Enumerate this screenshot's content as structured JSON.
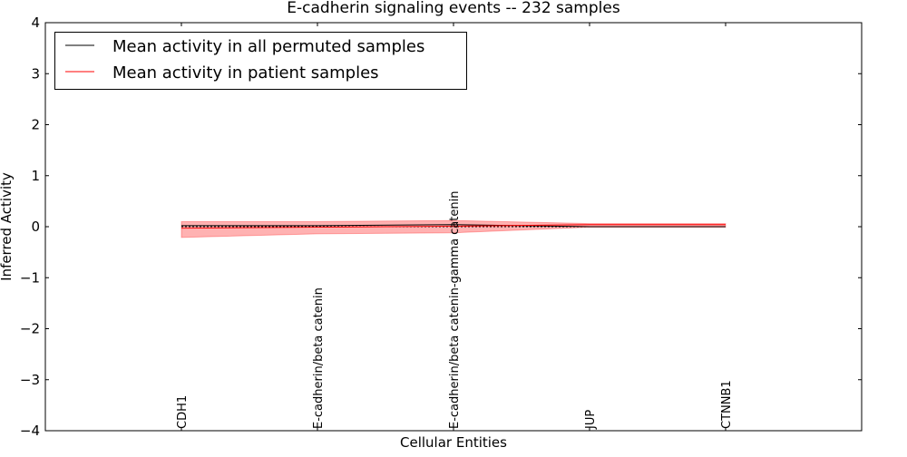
{
  "chart_data": {
    "type": "line",
    "title": "E-cadherin signaling events -- 232 samples",
    "xlabel": "Cellular Entities",
    "ylabel": "Inferred Activity",
    "ylim": [
      -4,
      4
    ],
    "xlim": [
      0,
      6
    ],
    "yticks": [
      4,
      3,
      2,
      1,
      0,
      -1,
      -2,
      -3,
      -4
    ],
    "ytick_labels": [
      "4",
      "3",
      "2",
      "1",
      "0",
      "−1",
      "−2",
      "−3",
      "−4"
    ],
    "categories": [
      "CDH1",
      "E-cadherin/beta catenin",
      "E-cadherin/beta catenin-gamma catenin",
      "JUP",
      "CTNNB1"
    ],
    "legend_placement": "top-left",
    "series": [
      {
        "name": "Mean activity in all permuted samples",
        "color": "#000000",
        "values": [
          0.02,
          0.02,
          0.04,
          0.0,
          0.0
        ]
      },
      {
        "name": "Mean activity in patient samples",
        "color": "#ff0000",
        "values": [
          -0.03,
          -0.01,
          0.01,
          0.04,
          0.04
        ]
      }
    ],
    "band": {
      "color": "#ff0000",
      "opacity": 0.3,
      "upper": [
        0.1,
        0.1,
        0.12,
        0.06,
        0.06
      ],
      "lower": [
        -0.21,
        -0.14,
        -0.12,
        -0.01,
        -0.01
      ]
    },
    "reference_line": 0
  }
}
